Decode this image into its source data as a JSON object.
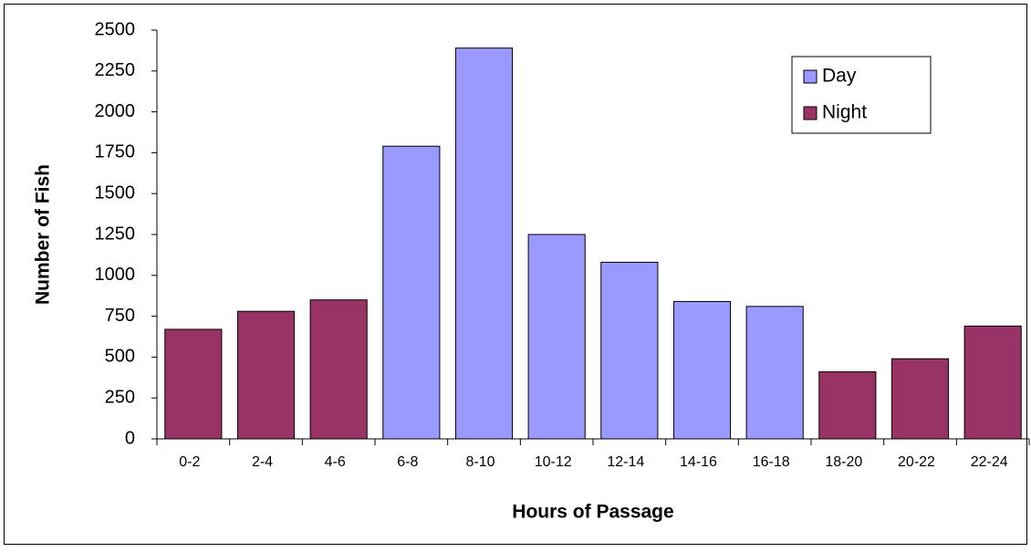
{
  "chart_data": {
    "type": "bar",
    "x_label": "Hours of Passage",
    "y_label": "Number of Fish",
    "categories": [
      "0-2",
      "2-4",
      "4-6",
      "6-8",
      "8-10",
      "10-12",
      "12-14",
      "14-16",
      "16-18",
      "18-20",
      "20-22",
      "22-24"
    ],
    "series": [
      {
        "name": "Day",
        "color": "#9999ff",
        "values": [
          null,
          null,
          null,
          1790,
          2390,
          1250,
          1080,
          840,
          810,
          null,
          null,
          null
        ]
      },
      {
        "name": "Night",
        "color": "#993366",
        "values": [
          670,
          780,
          850,
          null,
          null,
          null,
          null,
          null,
          null,
          410,
          490,
          690
        ]
      }
    ],
    "ylim": [
      0,
      2500
    ],
    "yticks": [
      0,
      250,
      500,
      750,
      1000,
      1250,
      1500,
      1750,
      2000,
      2250,
      2500
    ],
    "grid": false,
    "legend": "upper right"
  }
}
